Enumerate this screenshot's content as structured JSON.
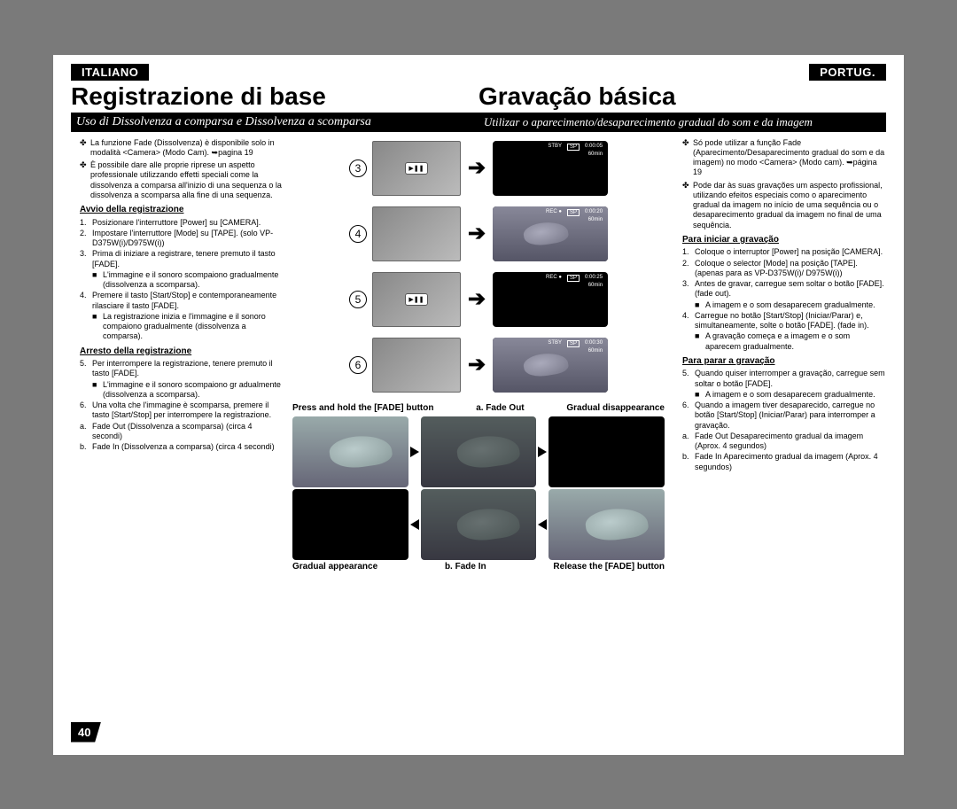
{
  "lang": {
    "left": "ITALIANO",
    "right": "PORTUG."
  },
  "title": {
    "left": "Registrazione di base",
    "right": "Gravação básica"
  },
  "subtitle": {
    "left": "Uso di Dissolvenza a comparsa e Dissolvenza a scomparsa",
    "right": "Utilizar o aparecimento/desaparecimento gradual do som e da imagem"
  },
  "it": {
    "b1": "La funzione Fade (Dissolvenza) è disponibile solo in modalità <Camera> (Modo Cam). ➥pagina 19",
    "b2": "È possibile dare alle proprie riprese un aspetto professionale utilizzando effetti speciali come la dissolvenza a comparsa all'inizio di una sequenza o la dissolvenza a scomparsa alla fine di una sequenza.",
    "h1": "Avvio della registrazione",
    "s1": "Posizionare l'interruttore [Power] su [CAMERA].",
    "s2": "Impostare l'interruttore [Mode] su [TAPE]. (solo VP-D375W(i)/D975W(i))",
    "s3": "Prima di iniziare a registrare, tenere premuto il tasto [FADE].",
    "s3a": "L'immagine e il sonoro scompaiono gradualmente (dissolvenza a scomparsa).",
    "s4": "Premere il tasto [Start/Stop] e contemporaneamente rilasciare il tasto [FADE].",
    "s4a": "La registrazione inizia e l'immagine e il sonoro compaiono gradualmente (dissolvenza a comparsa).",
    "h2": "Arresto della registrazione",
    "s5": "Per interrompere la registrazione, tenere premuto il tasto [FADE].",
    "s5a": "L'immagine e il sonoro scompaiono gr adualmente (dissolvenza a scomparsa).",
    "s6": "Una volta che l'immagine è scomparsa, premere il tasto [Start/Stop] per interrompere la registrazione.",
    "fa": "Fade Out (Dissolvenza a scomparsa) (circa 4 secondi)",
    "fb": "Fade In (Dissolvenza a comparsa) (circa 4 secondi)"
  },
  "pt": {
    "b1": "Só pode utilizar a função Fade (Aparecimento/Desaparecimento gradual do som e da imagem) no modo <Camera> (Modo cam). ➥página 19",
    "b2": "Pode dar às suas gravações um aspecto profissional, utilizando efeitos especiais como o aparecimento gradual da imagem no início de uma sequência ou o desaparecimento gradual da imagem no final de uma sequência.",
    "h1": "Para iniciar a gravação",
    "s1": "Coloque o interruptor [Power] na posição [CAMERA].",
    "s2": "Coloque o selector [Mode] na posição [TAPE]. (apenas para as VP-D375W(i)/ D975W(i))",
    "s3": "Antes de gravar, carregue sem soltar o botão [FADE]. (fade out).",
    "s3a": "A imagem e o som desaparecem gradualmente.",
    "s4": "Carregue no botão [Start/Stop] (Iniciar/Parar) e, simultaneamente, solte o botão [FADE]. (fade in).",
    "s4a": "A gravação começa e a imagem e o som aparecem gradualmente.",
    "h2": "Para parar a gravação",
    "s5": "Quando quiser interromper a gravação, carregue sem soltar o botão [FADE].",
    "s5a": "A imagem e o som desaparecem gradualmente.",
    "s6": "Quando a imagem tiver desaparecido, carregue no botão [Start/Stop] (Iniciar/Parar) para interromper a gravação.",
    "fa": "Fade Out Desaparecimento gradual da imagem (Aprox. 4 segundos)",
    "fb": "Fade In Aparecimento gradual da imagem (Aprox. 4 segundos)"
  },
  "steps": {
    "n3": "3",
    "n4": "4",
    "n5": "5",
    "n6": "6",
    "lcd3": {
      "status": "STBY",
      "sp": "SP",
      "time": "0:00:05",
      "remain": "60min"
    },
    "lcd4": {
      "status": "REC ●",
      "sp": "SP",
      "time": "0:00:20",
      "remain": "60min"
    },
    "lcd5": {
      "status": "REC ●",
      "sp": "SP",
      "time": "0:00:25",
      "remain": "60min"
    },
    "lcd6": {
      "status": "STBY",
      "sp": "SP",
      "time": "0:00:30",
      "remain": "60min"
    }
  },
  "fade": {
    "top_l": "Press and hold the [FADE] button",
    "top_c": "a. Fade Out",
    "top_r": "Gradual disappearance",
    "bot_l": "Gradual appearance",
    "bot_c": "b. Fade In",
    "bot_r": "Release the [FADE] button"
  },
  "pagenum": "40",
  "colors": {
    "page_bg": "#ffffff",
    "outer_bg": "#7a7a7a",
    "bar_bg": "#000000",
    "bar_fg": "#ffffff"
  }
}
